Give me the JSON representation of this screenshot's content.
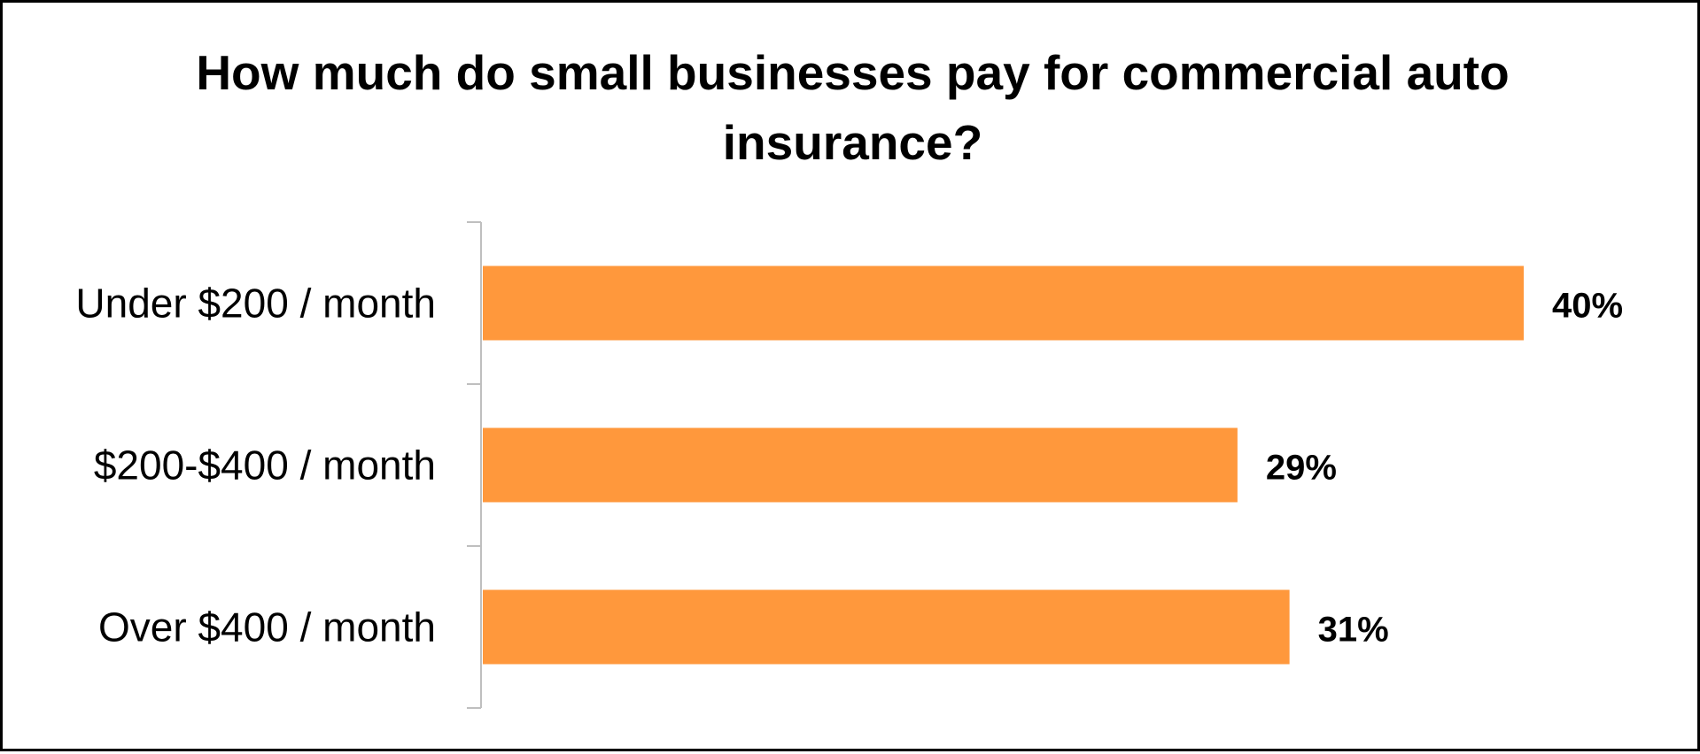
{
  "chart_data": {
    "type": "bar",
    "orientation": "horizontal",
    "title": "How much do small businesses pay for commercial auto insurance?",
    "categories": [
      "Under $200 / month",
      "$200-$400 / month",
      "Over $400 / month"
    ],
    "values": [
      40,
      29,
      31
    ],
    "value_labels": [
      "40%",
      "29%",
      "31%"
    ],
    "xlim": [
      0,
      40
    ],
    "bar_color": "#FF983C",
    "axis_color": "#BFBFBF",
    "grid": false,
    "legend": "none"
  }
}
